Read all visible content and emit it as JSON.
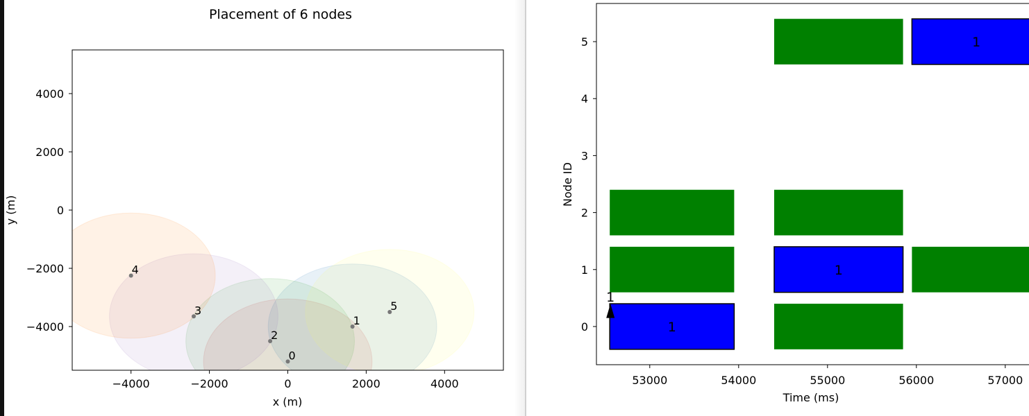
{
  "chart_data": [
    {
      "type": "scatter",
      "title": "Placement of 6 nodes",
      "xlabel": "x (m)",
      "ylabel": "y (m)",
      "xlim": [
        -5500,
        5500
      ],
      "ylim": [
        -5500,
        5500
      ],
      "xticks": [
        -4000,
        -2000,
        0,
        2000,
        4000
      ],
      "yticks": [
        -4000,
        -2000,
        0,
        2000,
        4000
      ],
      "xtick_labels": [
        "−4000",
        "−2000",
        "0",
        "2000",
        "4000"
      ],
      "ytick_labels": [
        "−4000",
        "−2000",
        "0",
        "2000",
        "4000"
      ],
      "coverage_radius": 2150,
      "points": [
        {
          "id": "0",
          "x": 0,
          "y": -5200,
          "color": "#d62728"
        },
        {
          "id": "1",
          "x": 1650,
          "y": -4000,
          "color": "#1f77b4"
        },
        {
          "id": "2",
          "x": -450,
          "y": -4500,
          "color": "#2ca02c"
        },
        {
          "id": "3",
          "x": -2400,
          "y": -3650,
          "color": "#9467bd"
        },
        {
          "id": "4",
          "x": -4000,
          "y": -2250,
          "color": "#ff7f0e"
        },
        {
          "id": "5",
          "x": 2600,
          "y": -3500,
          "color": "#ffff66"
        }
      ]
    },
    {
      "type": "timeline",
      "xlabel": "Time (ms)",
      "ylabel": "Node ID",
      "xlim": [
        52400,
        57400
      ],
      "ylim": [
        -0.67,
        5.67
      ],
      "xticks": [
        53000,
        54000,
        55000,
        56000,
        57000
      ],
      "yticks": [
        0,
        1,
        2,
        3,
        4,
        5
      ],
      "xtick_labels": [
        "53000",
        "54000",
        "55000",
        "56000",
        "57000"
      ],
      "ytick_labels": [
        "0",
        "1",
        "2",
        "3",
        "4",
        "5"
      ],
      "colors": {
        "tx": "#0000ff",
        "rx": "#008000"
      },
      "bars": [
        {
          "node": 0,
          "start": 52550,
          "end": 53950,
          "kind": "tx",
          "label": "1"
        },
        {
          "node": 0,
          "start": 54400,
          "end": 55850,
          "kind": "rx",
          "label": ""
        },
        {
          "node": 1,
          "start": 52550,
          "end": 53950,
          "kind": "rx",
          "label": ""
        },
        {
          "node": 1,
          "start": 54400,
          "end": 55850,
          "kind": "tx",
          "label": "1"
        },
        {
          "node": 1,
          "start": 55950,
          "end": 57400,
          "kind": "rx",
          "label": ""
        },
        {
          "node": 2,
          "start": 52550,
          "end": 53950,
          "kind": "rx",
          "label": ""
        },
        {
          "node": 2,
          "start": 54400,
          "end": 55850,
          "kind": "rx",
          "label": ""
        },
        {
          "node": 5,
          "start": 54400,
          "end": 55850,
          "kind": "rx",
          "label": ""
        },
        {
          "node": 5,
          "start": 55950,
          "end": 57400,
          "kind": "tx",
          "label": "1"
        }
      ],
      "arrows": [
        {
          "node": 0,
          "time": 52550,
          "label": "1"
        }
      ]
    }
  ]
}
